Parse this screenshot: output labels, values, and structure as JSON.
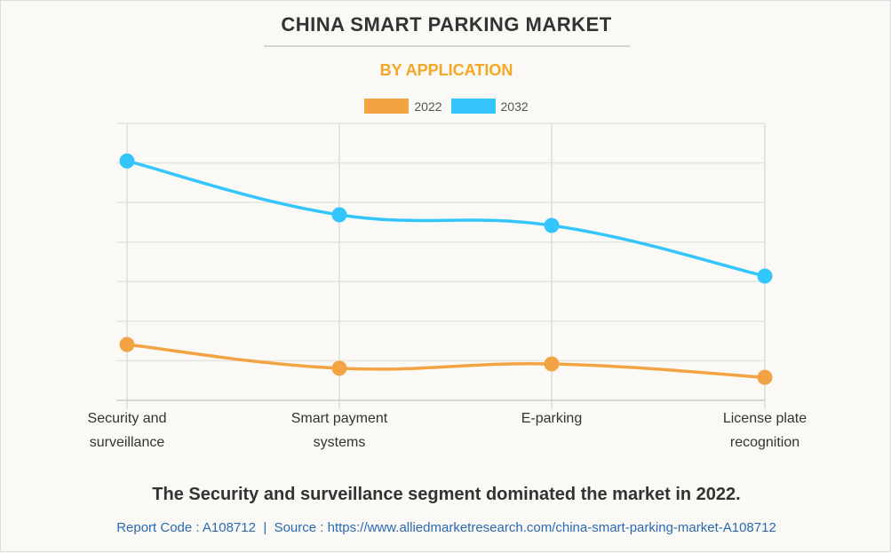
{
  "header": {
    "title": "CHINA SMART PARKING MARKET",
    "subtitle": "BY APPLICATION"
  },
  "colors": {
    "series_2022": "#f2a444",
    "series_2032": "#33c5fb",
    "subtitle": "#f5a623",
    "footer_link": "#2a6ab3"
  },
  "chart_data": {
    "type": "line",
    "title": "CHINA SMART PARKING MARKET",
    "subtitle": "BY APPLICATION",
    "xlabel": "",
    "ylabel": "",
    "categories": [
      "Security and surveillance",
      "Smart payment systems",
      "E-parking",
      "License plate recognition"
    ],
    "category_lines": [
      [
        "Security and",
        "surveillance"
      ],
      [
        "Smart payment",
        "systems"
      ],
      [
        "E-parking"
      ],
      [
        "License plate",
        "recognition"
      ]
    ],
    "series": [
      {
        "name": "2022",
        "color": "#f2a444",
        "values": [
          1.41,
          0.81,
          0.92,
          0.58
        ]
      },
      {
        "name": "2032",
        "color": "#33c5fb",
        "values": [
          6.05,
          4.69,
          4.42,
          3.14
        ]
      }
    ],
    "ylim": [
      0,
      7
    ],
    "y_gridlines": 7,
    "y_tick_labels_shown": false,
    "y_units_note": "relative scale (no y-axis labels shown)",
    "grid": true,
    "smooth": true,
    "legend": "top-center"
  },
  "headline": "The Security and surveillance segment dominated the market in 2022.",
  "footer": {
    "report_code": "Report Code : A108712",
    "separator": "|",
    "source": "Source : https://www.alliedmarketresearch.com/china-smart-parking-market-A108712"
  }
}
